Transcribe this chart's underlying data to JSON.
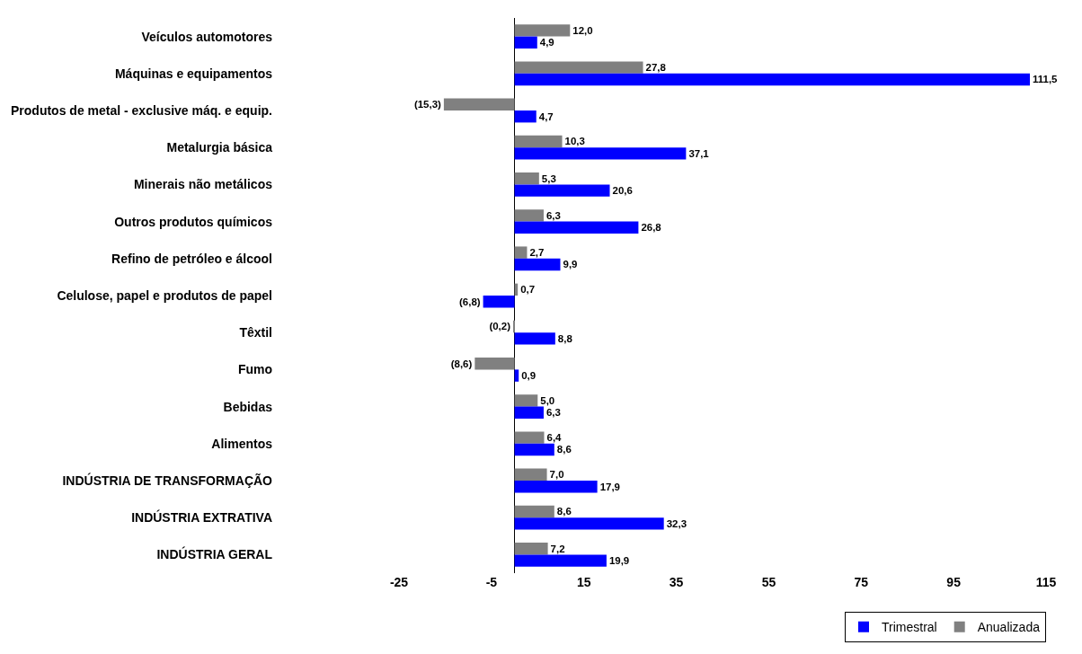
{
  "chart_data": {
    "type": "bar",
    "orientation": "horizontal",
    "categories": [
      "Veículos automotores",
      "Máquinas e equipamentos",
      "Produtos de metal - exclusive máq. e equip.",
      "Metalurgia básica",
      "Minerais não metálicos",
      "Outros produtos químicos",
      "Refino de petróleo e álcool",
      "Celulose, papel e produtos de papel",
      "Têxtil",
      "Fumo",
      "Bebidas",
      "Alimentos",
      "INDÚSTRIA DE TRANSFORMAÇÃO",
      "INDÚSTRIA EXTRATIVA",
      "INDÚSTRIA GERAL"
    ],
    "series": [
      {
        "name": "Trimestral",
        "color": "#0000ff",
        "values": [
          4.9,
          111.5,
          4.7,
          37.1,
          20.6,
          26.8,
          9.9,
          -6.8,
          8.8,
          0.9,
          6.3,
          8.6,
          17.9,
          32.3,
          19.9
        ],
        "value_labels": [
          "4,9",
          "111,5",
          "4,7",
          "37,1",
          "20,6",
          "26,8",
          "9,9",
          "(6,8)",
          "8,8",
          "0,9",
          "6,3",
          "8,6",
          "17,9",
          "32,3",
          "19,9"
        ]
      },
      {
        "name": "Anualizada",
        "color": "#808080",
        "values": [
          12.0,
          27.8,
          -15.3,
          10.3,
          5.3,
          6.3,
          2.7,
          0.7,
          -0.2,
          -8.6,
          5.0,
          6.4,
          7.0,
          8.6,
          7.2
        ],
        "value_labels": [
          "12,0",
          "27,8",
          "(15,3)",
          "10,3",
          "5,3",
          "6,3",
          "2,7",
          "0,7",
          "(0,2)",
          "(8,6)",
          "5,0",
          "6,4",
          "7,0",
          "8,6",
          "7,2"
        ]
      }
    ],
    "xlim": [
      -25,
      115
    ],
    "xticks": [
      -25,
      -5,
      15,
      35,
      55,
      75,
      95,
      115
    ],
    "legend": "bottom right"
  }
}
